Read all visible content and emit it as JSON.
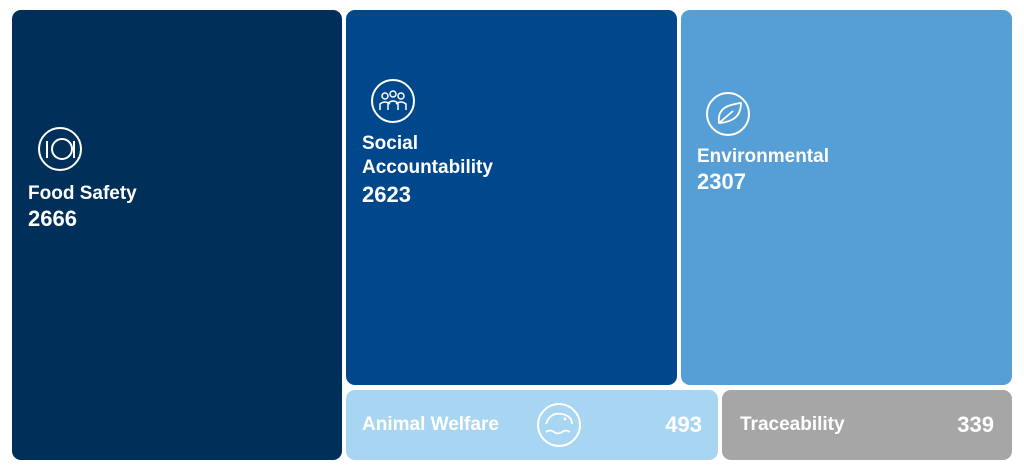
{
  "tiles": [
    {
      "label": "Food Safety",
      "value": "2666"
    },
    {
      "label": "Social Accountability",
      "value": "2623"
    },
    {
      "label": "Environmental",
      "value": "2307"
    },
    {
      "label": "Animal Welfare",
      "value": "493"
    },
    {
      "label": "Traceability",
      "value": "339"
    }
  ]
}
